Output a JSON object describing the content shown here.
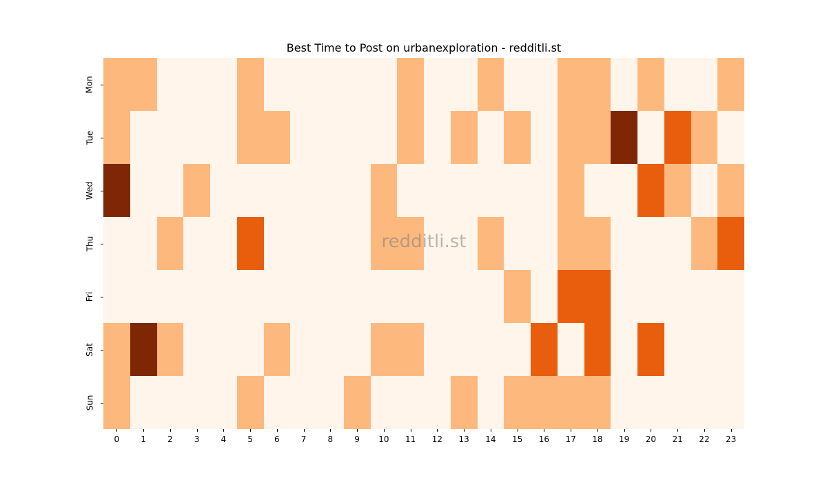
{
  "chart_data": {
    "type": "heatmap",
    "title": "Best Time to Post on urbanexploration - redditli.st",
    "xlabel": "",
    "ylabel": "",
    "x": [
      "0",
      "1",
      "2",
      "3",
      "4",
      "5",
      "6",
      "7",
      "8",
      "9",
      "10",
      "11",
      "12",
      "13",
      "14",
      "15",
      "16",
      "17",
      "18",
      "19",
      "20",
      "21",
      "22",
      "23"
    ],
    "y": [
      "Mon",
      "Tue",
      "Wed",
      "Thu",
      "Fri",
      "Sat",
      "Sun"
    ],
    "colormap": "Oranges",
    "levels": {
      "0": "#fff5eb",
      "1": "#fdb97d",
      "2": "#e95e0d",
      "3": "#7f2704"
    },
    "values": [
      [
        1,
        1,
        0,
        0,
        0,
        1,
        0,
        0,
        0,
        0,
        0,
        1,
        0,
        0,
        1,
        0,
        0,
        1,
        1,
        0,
        1,
        0,
        0,
        1
      ],
      [
        1,
        0,
        0,
        0,
        0,
        1,
        1,
        0,
        0,
        0,
        0,
        1,
        0,
        1,
        0,
        1,
        0,
        1,
        1,
        3,
        0,
        2,
        1,
        0
      ],
      [
        3,
        0,
        0,
        1,
        0,
        0,
        0,
        0,
        0,
        0,
        1,
        0,
        0,
        0,
        0,
        0,
        0,
        1,
        0,
        0,
        2,
        1,
        0,
        1
      ],
      [
        0,
        0,
        1,
        0,
        0,
        2,
        0,
        0,
        0,
        0,
        1,
        1,
        0,
        0,
        1,
        0,
        0,
        1,
        1,
        0,
        0,
        0,
        1,
        2
      ],
      [
        0,
        0,
        0,
        0,
        0,
        0,
        0,
        0,
        0,
        0,
        0,
        0,
        0,
        0,
        0,
        1,
        0,
        2,
        2,
        0,
        0,
        0,
        0,
        0
      ],
      [
        1,
        3,
        1,
        0,
        0,
        0,
        1,
        0,
        0,
        0,
        1,
        1,
        0,
        0,
        0,
        0,
        2,
        0,
        2,
        0,
        2,
        0,
        0,
        0
      ],
      [
        1,
        0,
        0,
        0,
        0,
        1,
        0,
        0,
        0,
        1,
        0,
        0,
        0,
        1,
        0,
        1,
        1,
        1,
        1,
        0,
        0,
        0,
        0,
        0
      ]
    ],
    "watermark": "redditli.st",
    "grid": false,
    "legend": "none"
  }
}
